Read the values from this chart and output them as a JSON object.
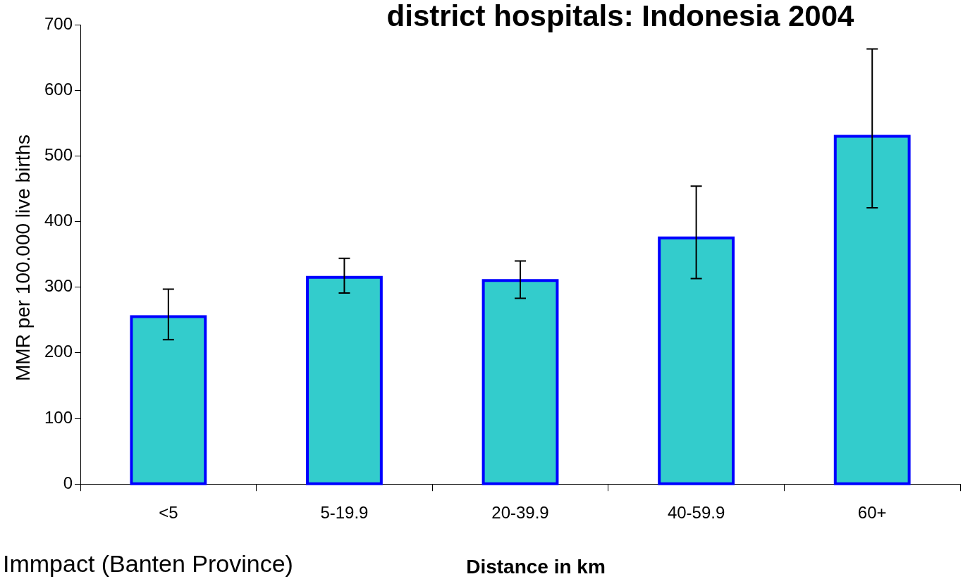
{
  "chart_data": {
    "type": "bar",
    "title": "district hospitals: Indonesia 2004",
    "xlabel": "Distance in km",
    "ylabel": "MMR per 100.000 live births",
    "categories": [
      "<5",
      "5-19.9",
      "20-39.9",
      "40-59.9",
      "60+"
    ],
    "values": [
      255,
      315,
      310,
      375,
      530
    ],
    "color": "#33cccc",
    "errors": [
      [
        220,
        297
      ],
      [
        291,
        344
      ],
      [
        283,
        340
      ],
      [
        313,
        454
      ],
      [
        421,
        663
      ]
    ],
    "ylim": [
      0,
      700
    ],
    "yticks": [
      0,
      100,
      200,
      300,
      400,
      500,
      600,
      700
    ],
    "grid": false,
    "annotations": [
      "Immpact (Banten Province)"
    ]
  }
}
